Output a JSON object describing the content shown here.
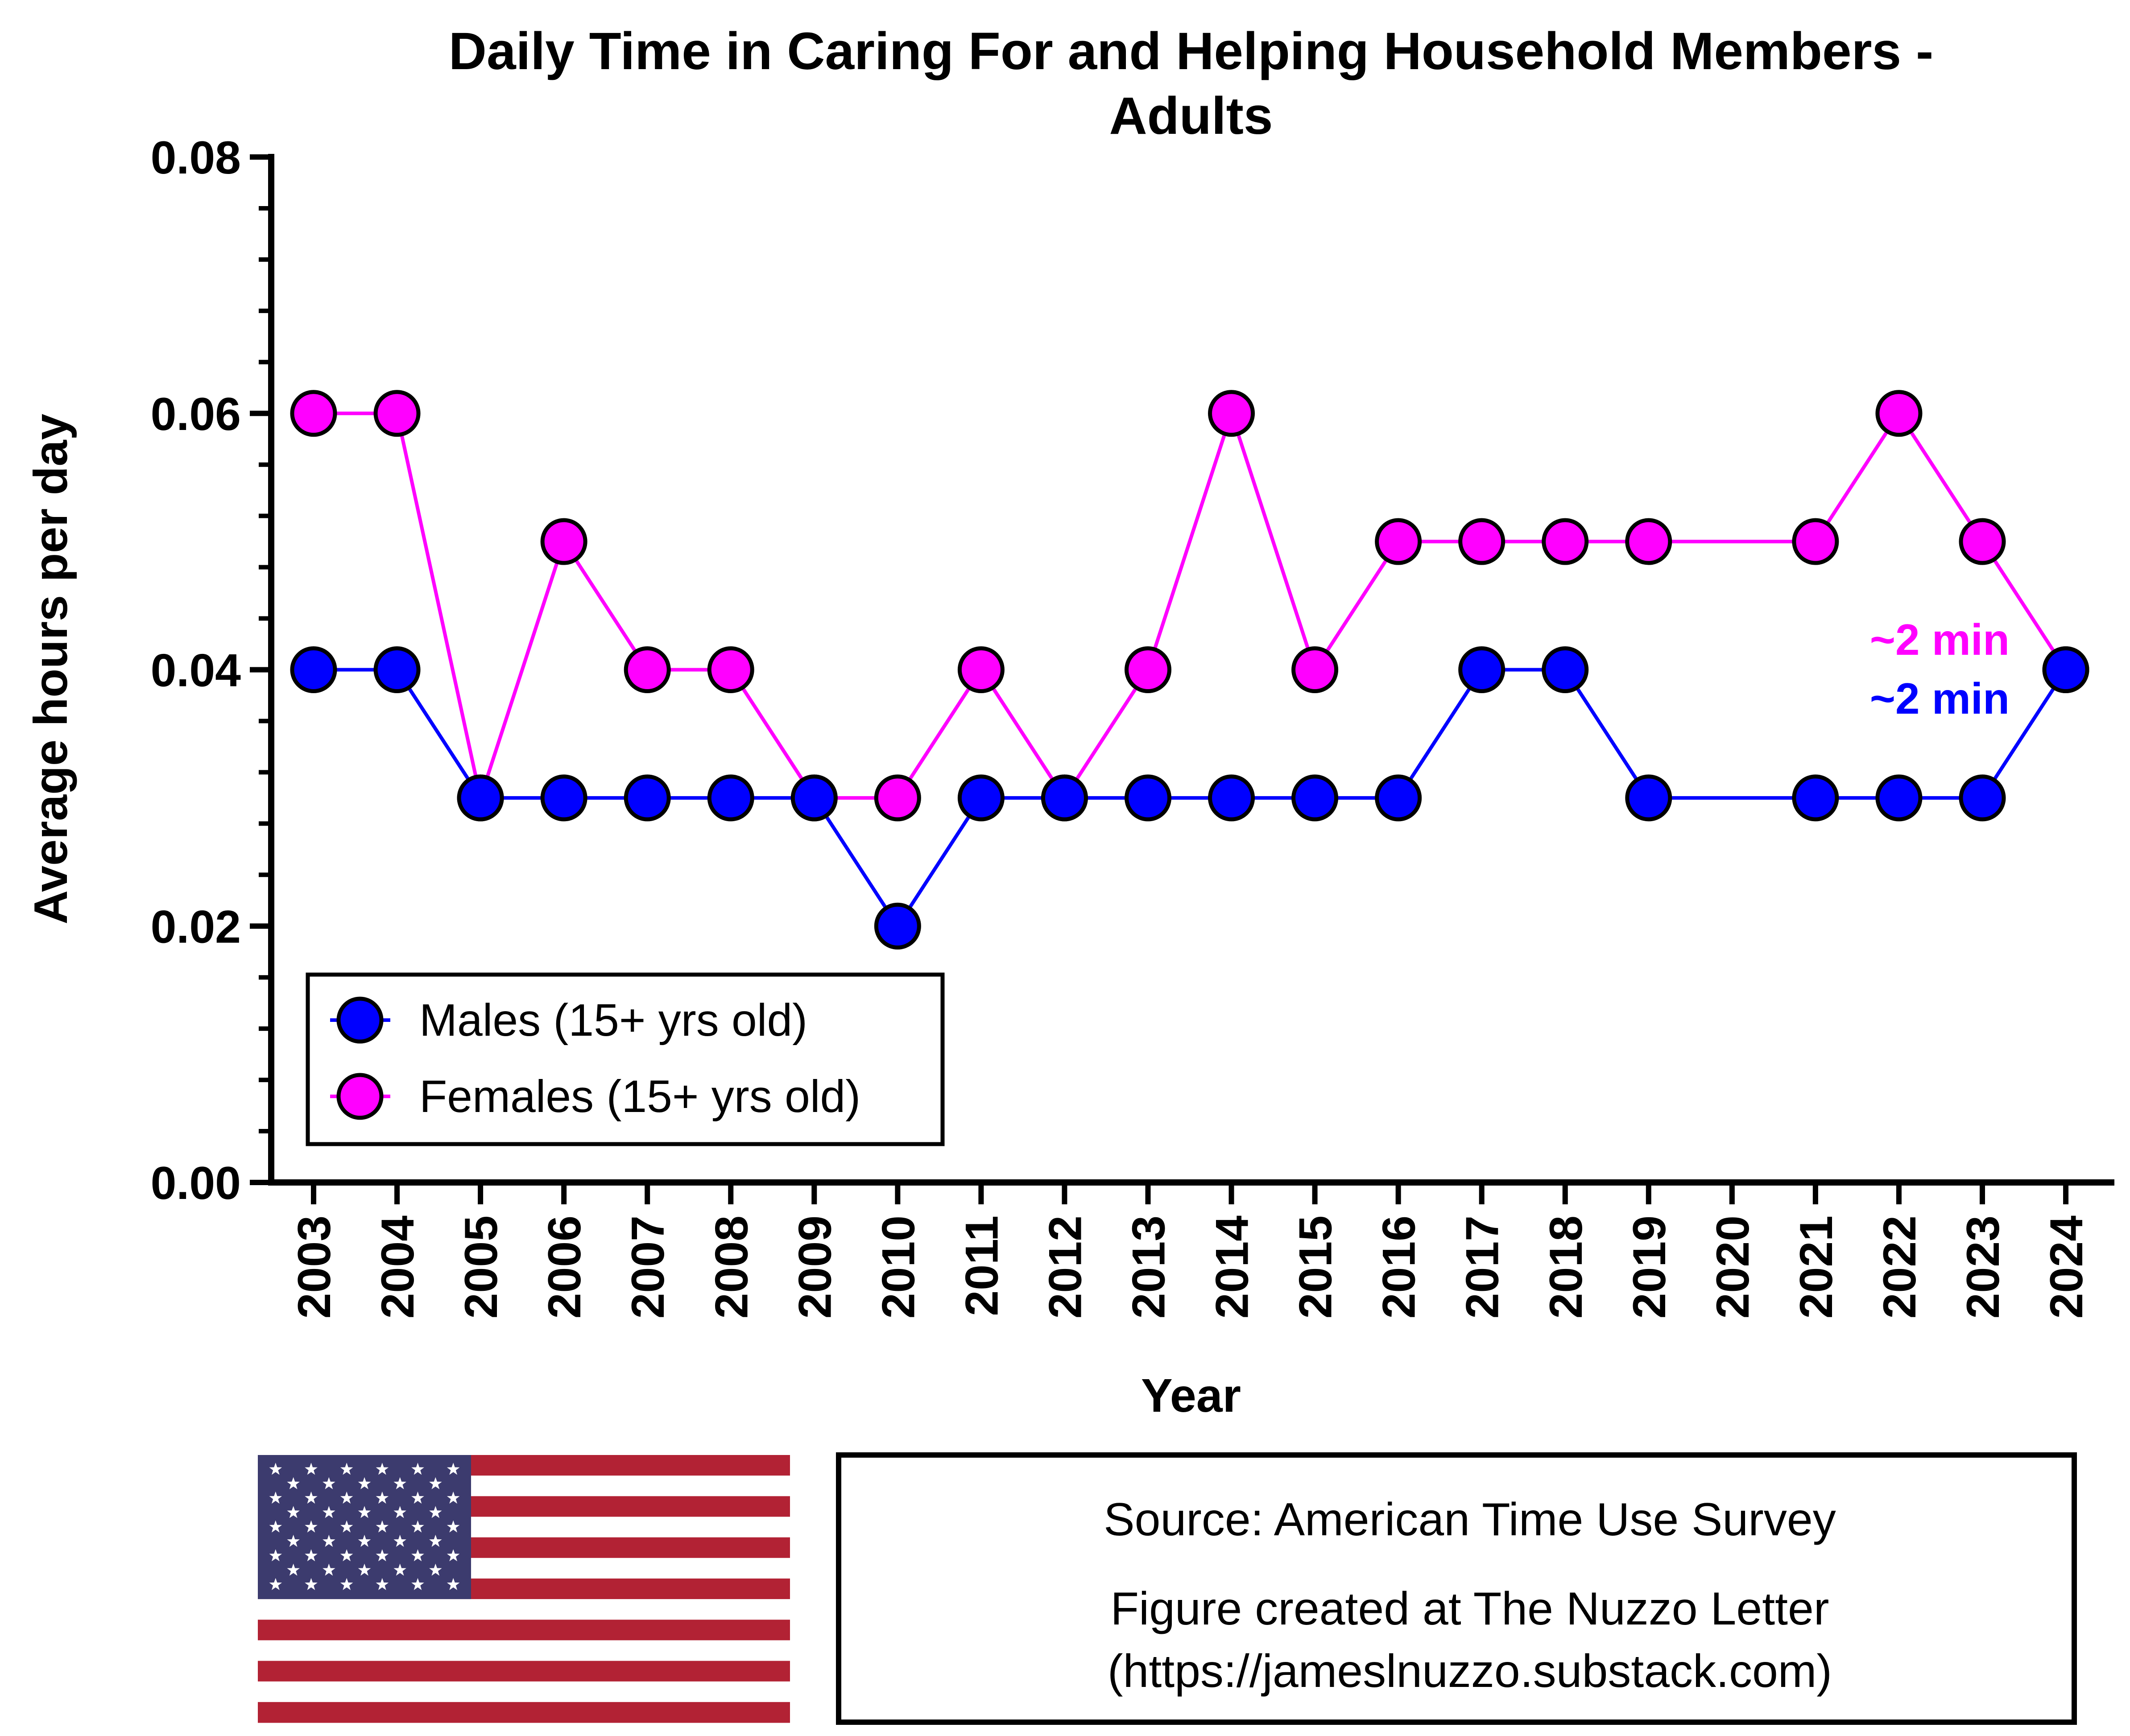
{
  "colors": {
    "males": "#0000FF",
    "females": "#FF00FF",
    "axis": "#000000",
    "flag_red": "#B22234",
    "flag_blue": "#3C3B6E",
    "flag_white": "#FFFFFF"
  },
  "chart_data": {
    "type": "line",
    "title": "Daily Time in Caring For and Helping Household Members -",
    "title_line2": "Adults",
    "xlabel": "Year",
    "ylabel": "Average hours per day",
    "ylim": [
      0,
      0.08
    ],
    "yticks": [
      "0.00",
      "0.02",
      "0.04",
      "0.06",
      "0.08"
    ],
    "grid": false,
    "legend_position": "bottom-left",
    "categories": [
      "2003",
      "2004",
      "2005",
      "2006",
      "2007",
      "2008",
      "2009",
      "2010",
      "2011",
      "2012",
      "2013",
      "2014",
      "2015",
      "2016",
      "2017",
      "2018",
      "2019",
      "2020",
      "2021",
      "2022",
      "2023",
      "2024"
    ],
    "series": [
      {
        "name": "Males (15+ yrs old)",
        "color": "#0000FF",
        "values": [
          0.04,
          0.04,
          0.03,
          0.03,
          0.03,
          0.03,
          0.03,
          0.02,
          0.03,
          0.03,
          0.03,
          0.03,
          0.03,
          0.03,
          0.04,
          0.04,
          0.03,
          null,
          0.03,
          0.03,
          0.03,
          0.04
        ]
      },
      {
        "name": "Females (15+ yrs old)",
        "color": "#FF00FF",
        "values": [
          0.06,
          0.06,
          0.03,
          0.05,
          0.04,
          0.04,
          0.03,
          0.03,
          0.04,
          0.03,
          0.04,
          0.06,
          0.04,
          0.05,
          0.05,
          0.05,
          0.05,
          null,
          0.05,
          0.06,
          0.05,
          0.04
        ]
      }
    ],
    "annotations": [
      {
        "text": "~2 min",
        "series": "Females (15+ yrs old)"
      },
      {
        "text": "~2 min",
        "series": "Males (15+ yrs old)"
      }
    ]
  },
  "footer": {
    "source_line": "Source: American Time Use Survey",
    "credit_line1": "Figure created at The Nuzzo Letter",
    "credit_line2": "(https://jameslnuzzo.substack.com)",
    "flag_icon": "us-flag-icon"
  }
}
